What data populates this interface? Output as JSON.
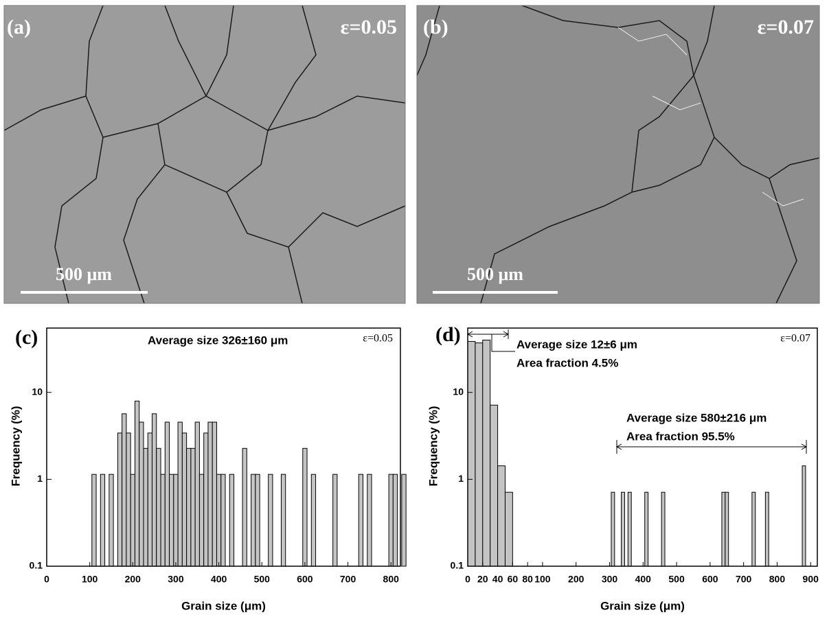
{
  "panels": [
    {
      "label": "(a)",
      "strain": "ε=0.05",
      "scale_bar": "500 μm"
    },
    {
      "label": "(b)",
      "strain": "ε=0.07",
      "scale_bar": "500 μm"
    }
  ],
  "chart_data": [
    {
      "type": "bar",
      "panel_label": "(c)",
      "strain": "ε=0.05",
      "annotations": [
        "Average size 326±160 μm"
      ],
      "xlabel": "Grain size (μm)",
      "ylabel": "Frequency (%)",
      "color": "#c4c4c4",
      "log_y": true,
      "x": [
        110,
        130,
        150,
        170,
        180,
        190,
        200,
        210,
        220,
        230,
        240,
        250,
        260,
        270,
        280,
        290,
        300,
        310,
        320,
        330,
        340,
        350,
        360,
        370,
        380,
        390,
        400,
        410,
        430,
        460,
        480,
        490,
        520,
        550,
        600,
        620,
        670,
        730,
        750,
        800,
        810,
        830
      ],
      "values": [
        1.14,
        1.14,
        1.14,
        3.41,
        5.68,
        3.41,
        1.14,
        7.95,
        4.55,
        2.27,
        3.41,
        5.68,
        2.27,
        1.14,
        4.55,
        1.14,
        1.14,
        4.55,
        3.41,
        2.27,
        2.27,
        4.55,
        1.14,
        3.41,
        4.55,
        4.55,
        1.14,
        1.14,
        1.14,
        2.27,
        1.14,
        1.14,
        1.14,
        1.14,
        2.27,
        1.14,
        1.14,
        1.14,
        1.14,
        1.14,
        1.14,
        1.14
      ],
      "xlim": [
        0,
        822
      ],
      "xticks": [
        0,
        100,
        200,
        300,
        400,
        500,
        600,
        700,
        800
      ],
      "ylim": [
        0.1,
        55
      ],
      "yticks": [
        0.1,
        1,
        10
      ]
    },
    {
      "type": "bar",
      "panel_label": "(d)",
      "strain": "ε=0.07",
      "annotations": [
        "Average size 12±6 μm",
        "Area fraction 4.5%",
        "Average size 580±216 μm",
        "Area fraction 95.5%"
      ],
      "xlabel": "Grain size (μm)",
      "ylabel": "Frequency (%)",
      "color": "#c4c4c4",
      "log_y": true,
      "xbreak": 100,
      "x": [
        5,
        15,
        25,
        35,
        45,
        55,
        310,
        340,
        360,
        410,
        460,
        640,
        650,
        730,
        770,
        880
      ],
      "values": [
        38.6,
        37.1,
        40.0,
        7.14,
        1.43,
        0.71,
        0.71,
        0.71,
        0.71,
        0.71,
        0.71,
        0.71,
        0.71,
        0.71,
        0.71,
        1.43
      ],
      "xlim": [
        0,
        920
      ],
      "xticks": [
        0,
        20,
        40,
        60,
        80,
        100,
        200,
        300,
        400,
        500,
        600,
        700,
        800,
        900
      ],
      "ylim": [
        0.1,
        55
      ],
      "yticks": [
        0.1,
        1,
        10
      ]
    }
  ]
}
